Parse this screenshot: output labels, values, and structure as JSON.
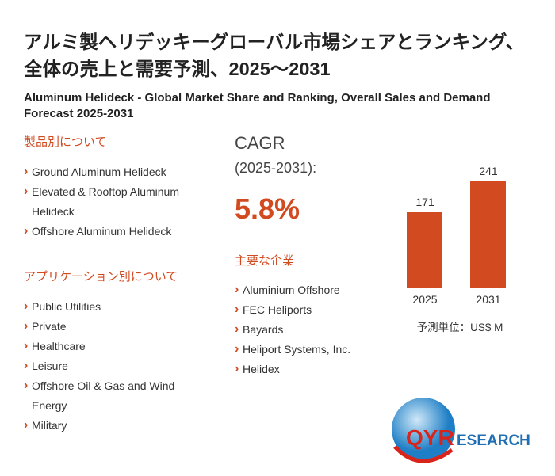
{
  "title": "アルミ製ヘリデッキーグローバル市場シェアとランキング、全体の売上と需要予測、2025～2031",
  "subtitle": "Aluminum Helideck - Global Market Share and Ranking, Overall Sales and Demand Forecast 2025-2031",
  "product_section": {
    "heading": "製品別について",
    "items": [
      "Ground Aluminum Helideck",
      "Elevated & Rooftop Aluminum Helideck",
      "Offshore Aluminum Helideck"
    ]
  },
  "application_section": {
    "heading": "アプリケーション別について",
    "items": [
      "Public Utilities",
      "Private",
      "Healthcare",
      "Leisure",
      "Offshore Oil & Gas and Wind Energy",
      "Military"
    ]
  },
  "cagr": {
    "label": "CAGR",
    "period": "(2025-2031):",
    "value": "5.8%"
  },
  "companies": {
    "heading": "主要な企業",
    "items": [
      "Aluminium Offshore",
      "FEC Heliports",
      "Bayards",
      "Heliport Systems, Inc.",
      "Helidex"
    ]
  },
  "chart_data": {
    "type": "bar",
    "categories": [
      "2025",
      "2031"
    ],
    "values": [
      171,
      241
    ],
    "unit_label": "予測単位：US$ M",
    "color": "#d24a20"
  },
  "logo": {
    "text_q": "QY",
    "text_r": "RESEARCH"
  }
}
